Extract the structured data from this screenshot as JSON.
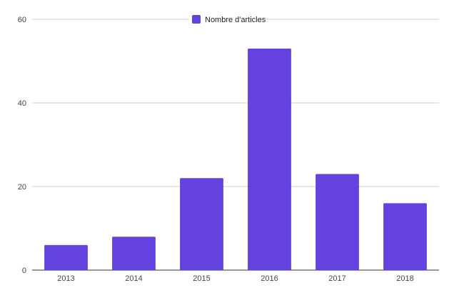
{
  "chart_data": {
    "type": "bar",
    "categories": [
      "2013",
      "2014",
      "2015",
      "2016",
      "2017",
      "2018"
    ],
    "series": [
      {
        "name": "Nombre d'articles",
        "values": [
          6,
          8,
          22,
          53,
          23,
          16
        ]
      }
    ],
    "ylim": [
      0,
      60
    ],
    "yticks": [
      0,
      20,
      40,
      60
    ],
    "grid": true,
    "legend_position": "top-center",
    "colors": {
      "series": "#6342df",
      "grid": "#cccccc",
      "baseline": "#333333"
    }
  }
}
